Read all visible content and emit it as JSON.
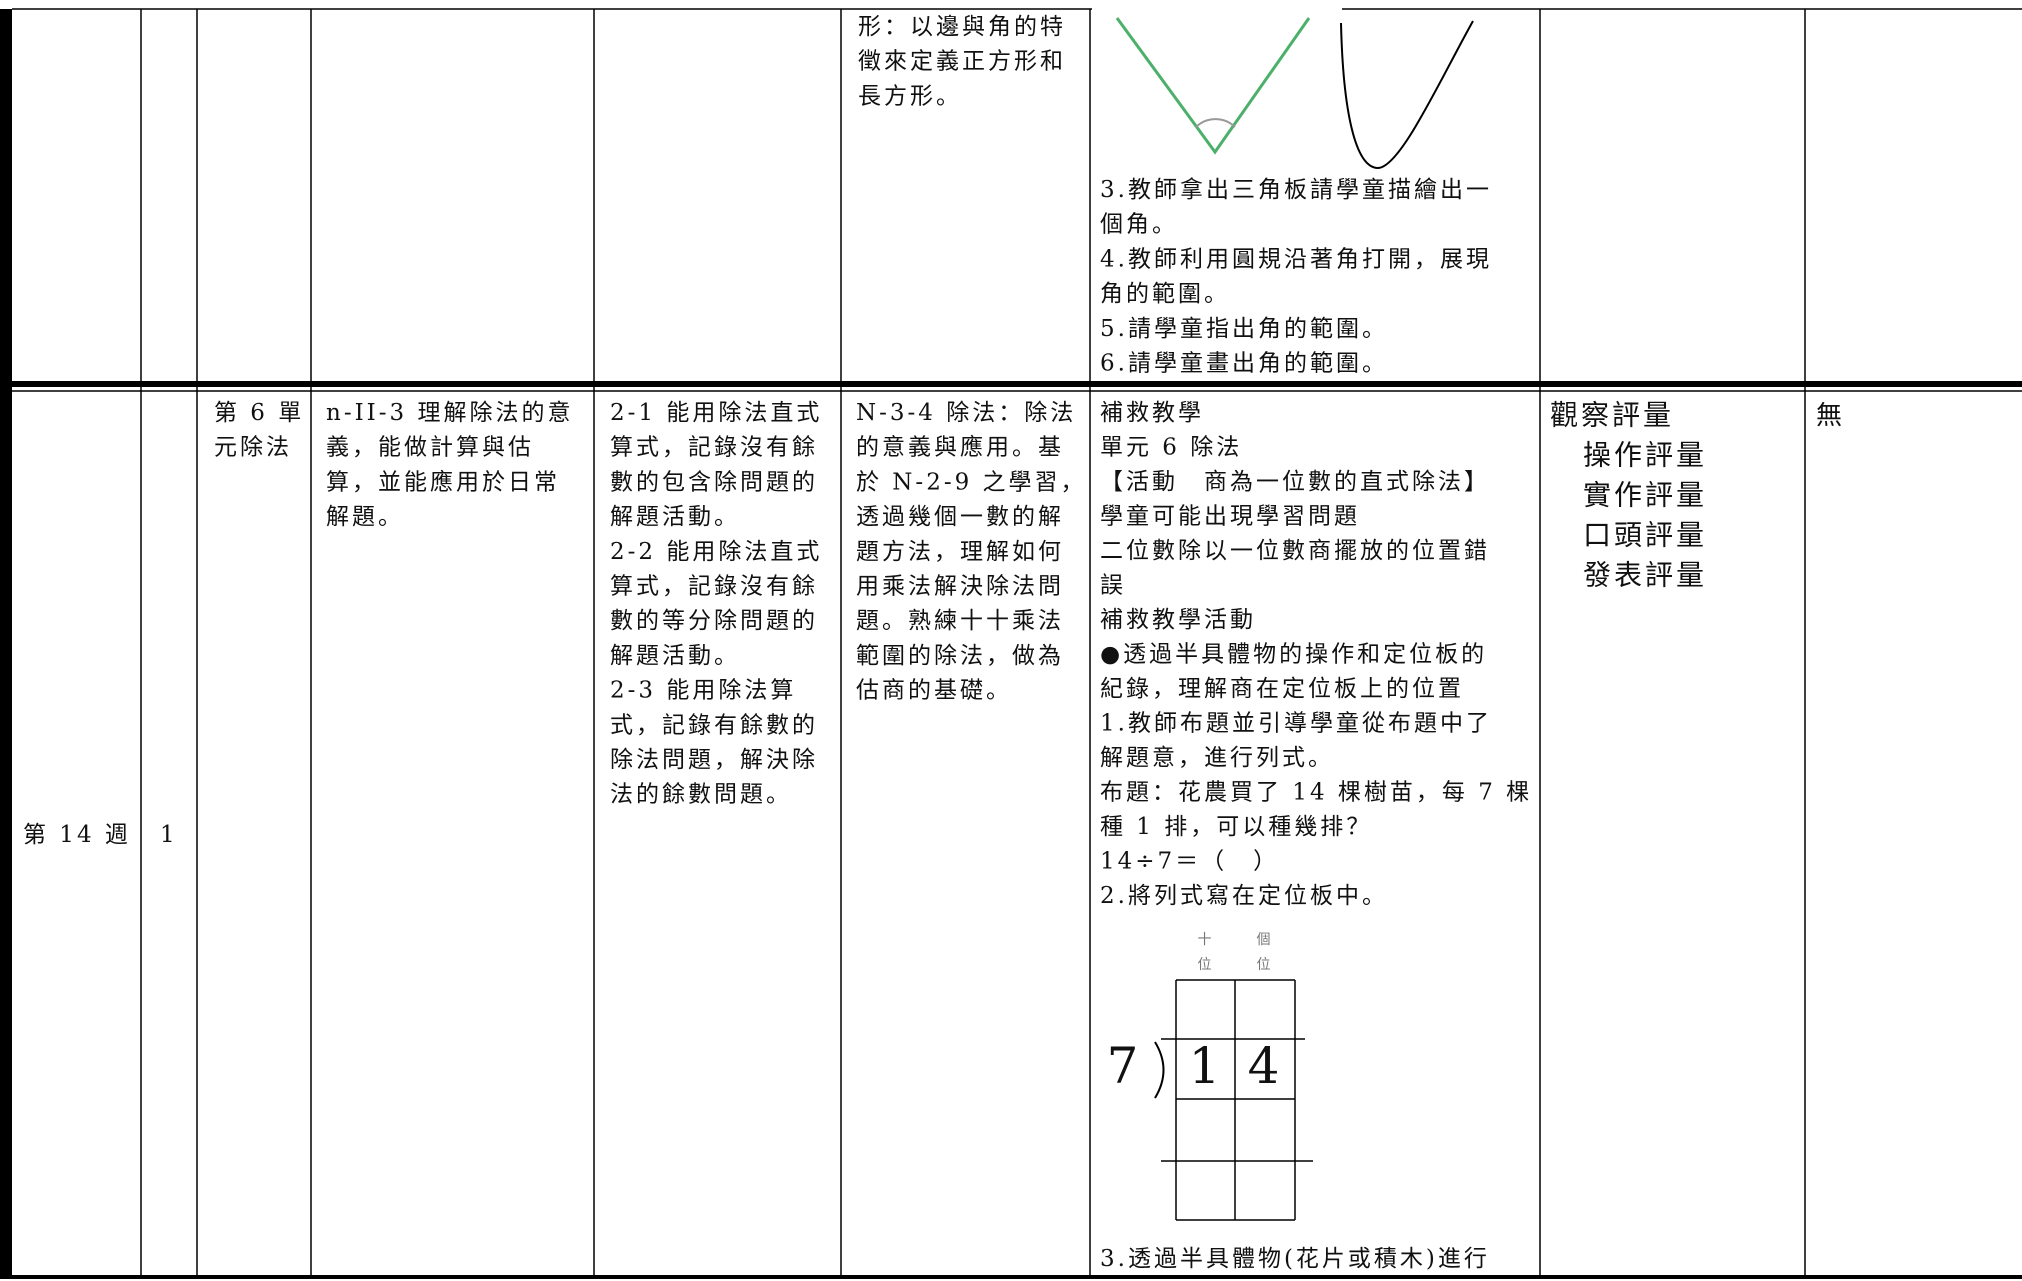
{
  "rows": [
    {
      "content": [
        "形：以邊與角的特",
        "徵來定義正方形和",
        "長方形。"
      ],
      "activities": [
        "3.教師拿出三角板請學童描繪出一",
        "個角。",
        "4.教師利用圓規沿著角打開，展現",
        "角的範圍。",
        "5.請學童指出角的範圍。",
        "6.請學童畫出角的範圍。"
      ]
    },
    {
      "week": "第 14 週",
      "periods": "1",
      "unit": [
        "第 6 單",
        "元除法"
      ],
      "performance": [
        "n-II-3 理解除法的意",
        "義，能做計算與估",
        "算，並能應用於日常",
        "解題。"
      ],
      "objectives": [
        "2-1 能用除法直式",
        "算式，記錄沒有餘",
        "數的包含除問題的",
        "解題活動。",
        "2-2 能用除法直式",
        "算式，記錄沒有餘",
        "數的等分除問題的",
        "解題活動。",
        "2-3 能用除法算",
        "式，記錄有餘數的",
        "除法問題，解決除",
        "法的餘數問題。"
      ],
      "content": [
        "N-3-4 除法：除法",
        "的意義與應用。基",
        "於 N-2-9 之學習，",
        "透過幾個一數的解",
        "題方法，理解如何",
        "用乘法解決除法問",
        "題。熟練十十乘法",
        "範圍的除法，做為",
        "估商的基礎。"
      ],
      "activities": [
        "補救教學",
        "單元 6 除法",
        "【活動　商為一位數的直式除法】",
        "學童可能出現學習問題",
        "二位數除以一位數商擺放的位置錯",
        "誤",
        "補救教學活動",
        "●透過半具體物的操作和定位板的",
        "紀錄，理解商在定位板上的位置",
        "1.教師布題並引導學童從布題中了",
        "解題意，進行列式。",
        "布題：花農買了 14 棵樹苗，每 7 棵",
        "種 1 排，可以種幾排？",
        "14÷7＝（　）",
        "2.將列式寫在定位板中。"
      ],
      "activities_end": [
        "3.透過半具體物(花片或積木)進行"
      ],
      "assessment_title": "觀察評量",
      "assessment": [
        "操作評量",
        "實作評量",
        "口頭評量",
        "發表評量"
      ],
      "notes": "無"
    }
  ],
  "board": {
    "tens": [
      "十",
      "位"
    ],
    "ones": [
      "個",
      "位"
    ],
    "divisor": "7",
    "dividend": [
      "1",
      "4"
    ]
  }
}
